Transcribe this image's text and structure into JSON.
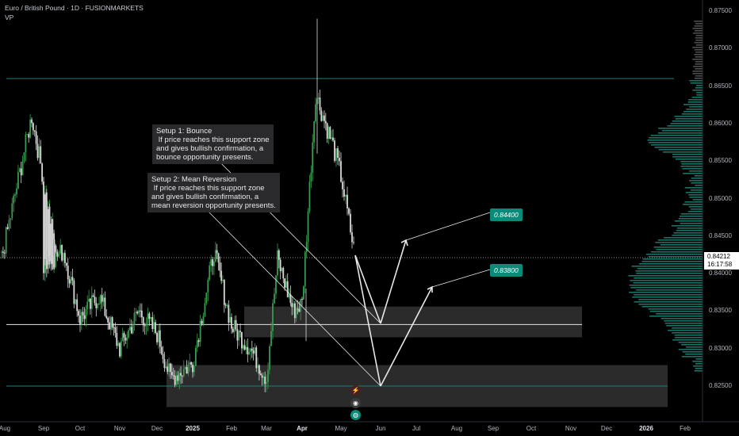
{
  "header": {
    "title": "Euro / British Pound · 1D · FUSIONMARKETS",
    "indicator": "VP"
  },
  "notes": [
    {
      "id": "bounce",
      "text": "Setup 1: Bounce\n If price reaches this support zone\nand gives bullish confirmation, a\nbounce opportunity presents."
    },
    {
      "id": "meanrev",
      "text": "Setup 2: Mean Reversion\n If price reaches this support zone\nand gives bullish confirmation, a\nmean reversion opportunity presents."
    }
  ],
  "targets": [
    "0.84400",
    "0.83800"
  ],
  "price_axis": {
    "ticks": [
      "0.87500",
      "0.87000",
      "0.86500",
      "0.86000",
      "0.85500",
      "0.85000",
      "0.84500",
      "0.84000",
      "0.83500",
      "0.83000",
      "0.82500"
    ],
    "current_price": "0.84212",
    "countdown": "16:17:58"
  },
  "time_axis": {
    "ticks": [
      {
        "label": "Aug",
        "bold": false
      },
      {
        "label": "Sep",
        "bold": false
      },
      {
        "label": "Oct",
        "bold": false
      },
      {
        "label": "Nov",
        "bold": false
      },
      {
        "label": "Dec",
        "bold": false
      },
      {
        "label": "2025",
        "bold": true
      },
      {
        "label": "Feb",
        "bold": false
      },
      {
        "label": "Mar",
        "bold": false
      },
      {
        "label": "Apr",
        "bold": true
      },
      {
        "label": "May",
        "bold": false
      },
      {
        "label": "Jun",
        "bold": false
      },
      {
        "label": "Jul",
        "bold": false
      },
      {
        "label": "Aug",
        "bold": false
      },
      {
        "label": "Sep",
        "bold": false
      },
      {
        "label": "Oct",
        "bold": false
      },
      {
        "label": "Nov",
        "bold": false
      },
      {
        "label": "Dec",
        "bold": false
      },
      {
        "label": "2026",
        "bold": true
      },
      {
        "label": "Feb",
        "bold": false
      }
    ]
  },
  "colors": {
    "up": "#3a9a50",
    "down": "#d8d8d8",
    "accent": "#0a8a78",
    "zone": "#2d2d2d"
  },
  "event_icons": [
    "flash-icon",
    "dividend-icon",
    "earnings-icon"
  ],
  "chart_data": {
    "type": "candlestick",
    "symbol": "EURGBP",
    "timeframe": "1D",
    "ylim": [
      0.8225,
      0.8755
    ],
    "last_price": 0.84212,
    "horizontal_lines": [
      0.866,
      0.8332,
      0.825
    ],
    "support_zones": [
      [
        0.8315,
        0.8356
      ],
      [
        0.8222,
        0.8278
      ]
    ],
    "targets": [
      0.844,
      0.838
    ],
    "path": [
      {
        "date": "2024-08",
        "close": 0.842
      },
      {
        "date": "2024-08-12",
        "close": 0.861
      },
      {
        "date": "2024-08-26",
        "close": 0.844
      },
      {
        "date": "2024-09",
        "close": 0.841
      },
      {
        "date": "2024-09-15",
        "close": 0.843
      },
      {
        "date": "2024-10",
        "close": 0.834
      },
      {
        "date": "2024-10-20",
        "close": 0.837
      },
      {
        "date": "2024-11",
        "close": 0.83
      },
      {
        "date": "2024-11-15",
        "close": 0.835
      },
      {
        "date": "2024-12",
        "close": 0.832
      },
      {
        "date": "2024-12-20",
        "close": 0.826
      },
      {
        "date": "2025-01",
        "close": 0.828
      },
      {
        "date": "2025-01-15",
        "close": 0.843
      },
      {
        "date": "2025-02",
        "close": 0.833
      },
      {
        "date": "2025-02-20",
        "close": 0.83
      },
      {
        "date": "2025-03",
        "close": 0.826
      },
      {
        "date": "2025-03-10",
        "close": 0.842
      },
      {
        "date": "2025-03-25",
        "close": 0.835
      },
      {
        "date": "2025-04",
        "close": 0.836
      },
      {
        "date": "2025-04-08",
        "close": 0.864
      },
      {
        "date": "2025-04-20",
        "close": 0.857
      },
      {
        "date": "2025-05",
        "close": 0.853
      },
      {
        "date": "2025-05-20",
        "close": 0.8421
      }
    ]
  }
}
